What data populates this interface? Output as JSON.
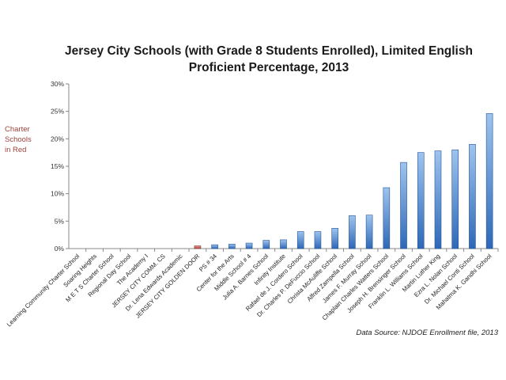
{
  "chart_data": {
    "type": "bar",
    "title_lines": [
      "Jersey City Schools (with Grade 8 Students Enrolled), Limited English",
      "Proficient Percentage, 2013"
    ],
    "annotation_lines": [
      "Charter",
      "Schools",
      "in Red"
    ],
    "source": "Data Source: NJDOE Enrollment file, 2013",
    "ylim": [
      0,
      30
    ],
    "y_ticks": [
      0,
      5,
      10,
      15,
      20,
      25,
      30
    ],
    "y_tick_labels": [
      "0%",
      "5%",
      "10%",
      "15%",
      "20%",
      "25%",
      "30%"
    ],
    "grid": false,
    "categories": [
      "Learning Community Charter School",
      "Soaring Heights",
      "M E T S Charter School",
      "Regional Day School",
      "The Academy I",
      "JERSEY CITY COMM. CS",
      "Dr. Lena Edwards Academic",
      "JERSEY CITY GOLDEN DOOR",
      "PS # 34",
      "Center for the Arts",
      "Middle School # 4",
      "Julia A. Barnes School",
      "Infinity Institute",
      "Rafael de J. Cordero School",
      "Dr. Charles P. DeFuccio School",
      "Christa McAuliffe School",
      "Alfred Zampella School",
      "James F. Murray School",
      "Chaplain Charles Watters School",
      "Joseph H. Brensinger School",
      "Franklin L. Williams School",
      "Martin Luther King",
      "Ezra L. Nolan School",
      "Dr. Michael Conti School",
      "Mahatma K. Gandhi School"
    ],
    "values": [
      0,
      0,
      0,
      0,
      0,
      0,
      0,
      0.5,
      0.7,
      0.8,
      1.0,
      1.5,
      1.6,
      3.1,
      3.1,
      3.7,
      6.0,
      6.1,
      11.1,
      15.7,
      17.5,
      17.8,
      18.0,
      19.0,
      24.6
    ],
    "charter": [
      true,
      false,
      true,
      false,
      true,
      true,
      true,
      true,
      false,
      false,
      false,
      false,
      false,
      false,
      false,
      false,
      false,
      false,
      false,
      false,
      false,
      false,
      false,
      false,
      false
    ],
    "colors": {
      "bar_top": "#9ec4ee",
      "bar_bottom": "#2e68b6",
      "charter_top": "#e29a93",
      "charter_bottom": "#b0443c",
      "axis": "#888888"
    }
  }
}
